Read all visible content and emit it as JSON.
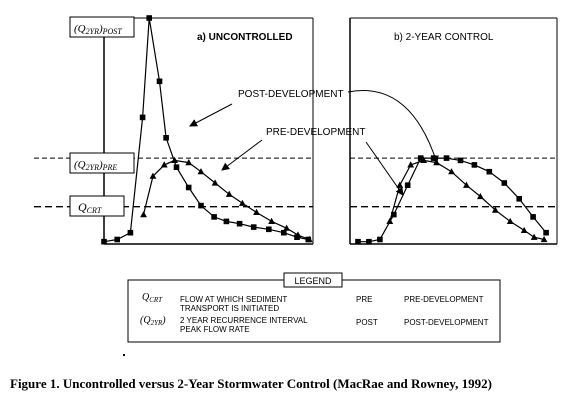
{
  "caption": "Figure 1.  Uncontrolled versus 2-Year Stormwater Control (MacRae and Rowney, 1992)",
  "labels": {
    "q2yr_post": "(Q2YR)POST",
    "q2yr_pre": "(Q2YR)PRE",
    "qcrt": "QCRT",
    "panel_a": "a)  UNCONTROLLED",
    "panel_b": "b)  2-YEAR CONTROL",
    "post_development": "POST-DEVELOPMENT",
    "pre_development": "PRE-DEVELOPMENT"
  },
  "legend": {
    "title": "LEGEND",
    "rows": [
      {
        "symbol": "QCRT",
        "desc": "FLOW AT WHICH SEDIMENT\nTRANSPORT IS INITIATED",
        "abbr": "PRE",
        "full": "PRE-DEVELOPMENT"
      },
      {
        "symbol": "(Q2YR)",
        "desc": "2 YEAR RECURRENCE INTERVAL\nPEAK FLOW RATE",
        "abbr": "POST",
        "full": "POST-DEVELOPMENT"
      }
    ]
  },
  "colors": {
    "ink": "#000000",
    "paper": "#ffffff"
  },
  "chart_data": [
    {
      "type": "line",
      "title": "a)  UNCONTROLLED",
      "ylim": [
        0,
        1
      ],
      "reference_lines": [
        {
          "label": "(Q2YR)POST",
          "y": 1.0
        },
        {
          "label": "(Q2YR)PRE",
          "y": 0.38
        },
        {
          "label": "QCRT",
          "y": 0.165
        }
      ],
      "series": [
        {
          "name": "POST-DEVELOPMENT",
          "marker": "square",
          "x": [
            0,
            1.4,
            2.8,
            4.1,
            4.8,
            5.9,
            6.6,
            7.7,
            9,
            10.3,
            11.7,
            13,
            14.4,
            15.9,
            17.5,
            19.1,
            20.5,
            21.7
          ],
          "y": [
            0.01,
            0.02,
            0.05,
            0.56,
            1.0,
            0.72,
            0.47,
            0.34,
            0.25,
            0.17,
            0.12,
            0.1,
            0.09,
            0.075,
            0.065,
            0.05,
            0.03,
            0.02
          ]
        },
        {
          "name": "PRE-DEVELOPMENT",
          "marker": "triangle",
          "x": [
            4.2,
            5.2,
            6.4,
            7.5,
            9,
            10.3,
            11.8,
            13.3,
            14.7,
            16.2,
            17.8,
            19.4,
            20.6,
            21.8
          ],
          "y": [
            0.13,
            0.3,
            0.35,
            0.37,
            0.36,
            0.32,
            0.27,
            0.22,
            0.18,
            0.14,
            0.1,
            0.07,
            0.04,
            0.02
          ]
        }
      ]
    },
    {
      "type": "line",
      "title": "b)  2-YEAR CONTROL",
      "ylim": [
        0,
        1
      ],
      "reference_lines": [
        {
          "label": "(Q2YR)PRE",
          "y": 0.38
        },
        {
          "label": "QCRT",
          "y": 0.165
        }
      ],
      "series": [
        {
          "name": "POST-DEVELOPMENT",
          "marker": "square",
          "x": [
            0,
            1.1,
            2.2,
            3.6,
            5.0,
            6.3,
            7.6,
            8.9,
            10.3,
            11.7,
            13.2,
            14.7,
            16.2,
            17.6,
            18.9
          ],
          "y": [
            0.01,
            0.01,
            0.02,
            0.13,
            0.26,
            0.38,
            0.38,
            0.38,
            0.37,
            0.35,
            0.32,
            0.27,
            0.2,
            0.12,
            0.05
          ]
        },
        {
          "name": "PRE-DEVELOPMENT",
          "marker": "triangle",
          "x": [
            3.2,
            4.2,
            5.3,
            6.6,
            7.9,
            9.4,
            10.9,
            12.3,
            13.8,
            15.3,
            16.7,
            17.7,
            18.7
          ],
          "y": [
            0.1,
            0.26,
            0.35,
            0.37,
            0.36,
            0.32,
            0.26,
            0.21,
            0.15,
            0.1,
            0.06,
            0.03,
            0.02
          ]
        }
      ]
    }
  ]
}
